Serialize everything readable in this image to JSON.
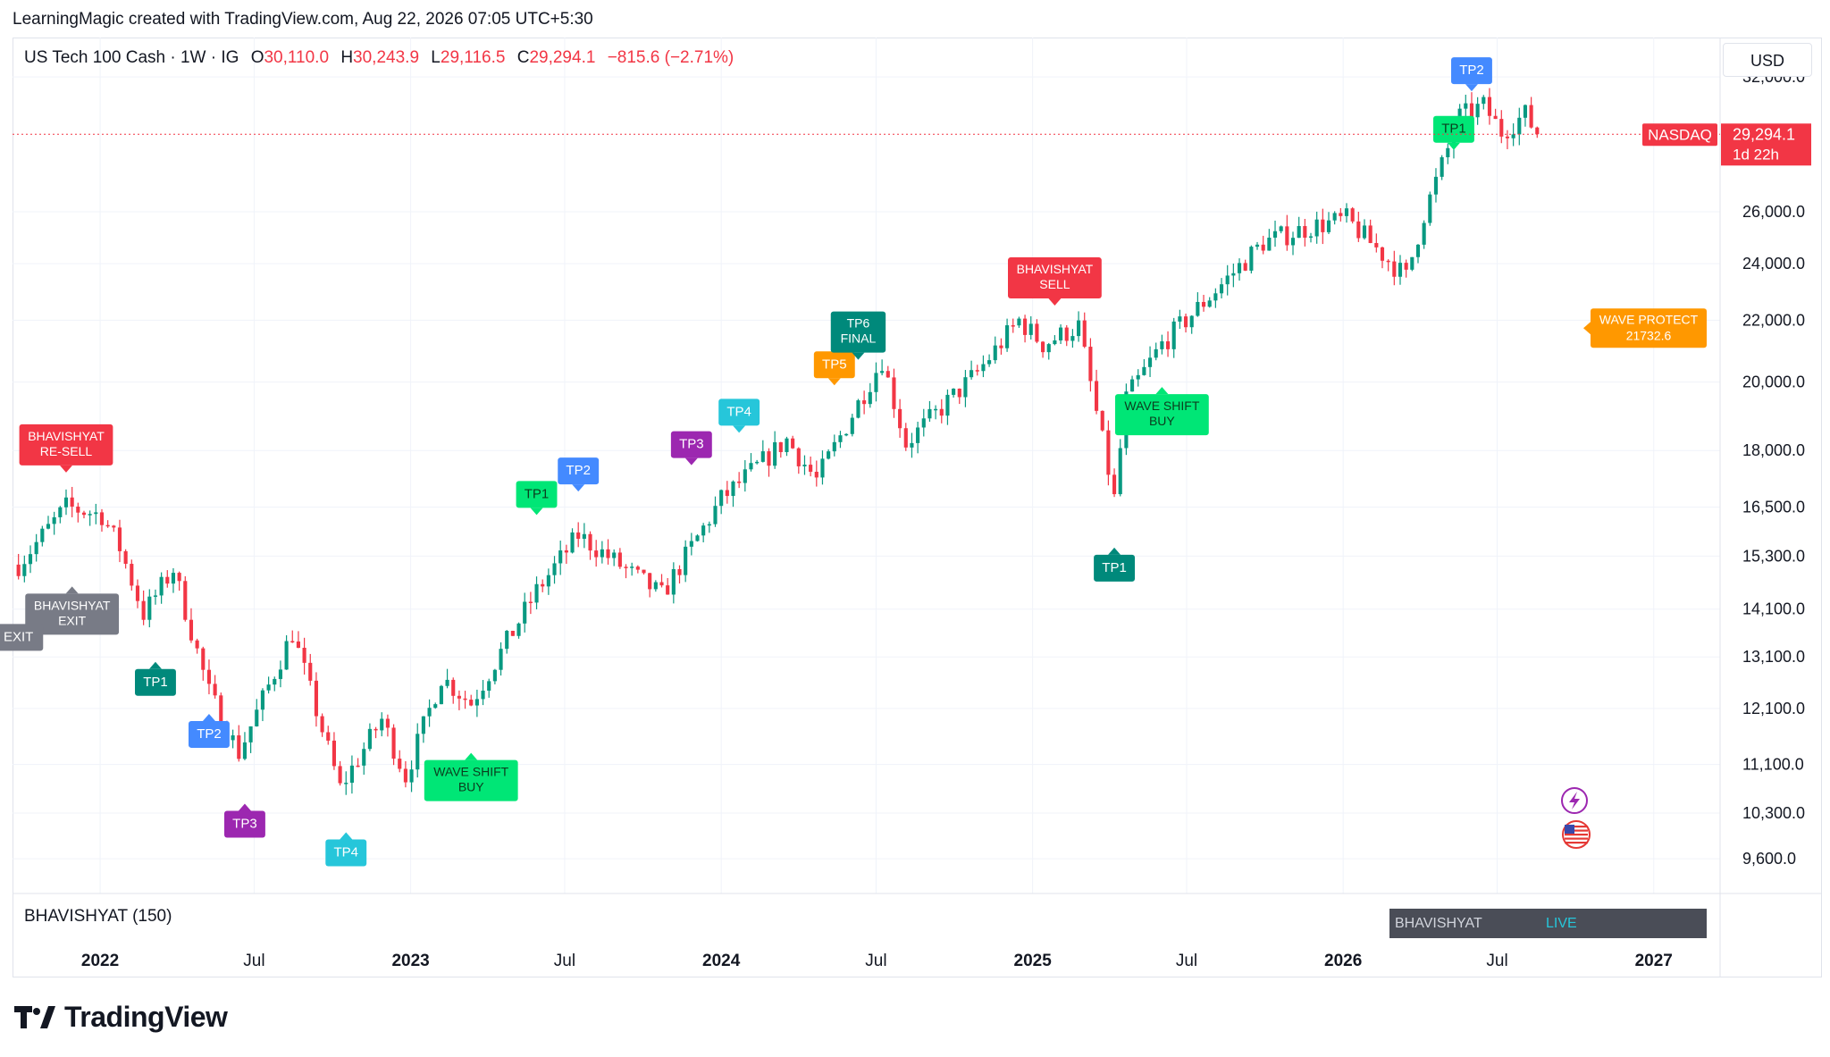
{
  "header": {
    "credit": "LearningMagic created with TradingView.com, Aug 22, 2026 07:05 UTC+5:30"
  },
  "legend": {
    "symbol": "US Tech 100 Cash · 1W · IG",
    "open_key": "O",
    "open": "30,110.0",
    "high_key": "H",
    "high": "30,243.9",
    "low_key": "L",
    "low": "29,116.5",
    "close_key": "C",
    "close": "29,294.1",
    "change": "−815.6 (−2.71%)"
  },
  "currency": "USD",
  "indicator": {
    "label": "BHAVISHYAT (150)",
    "table_name": "BHAVISHYAT",
    "table_status": "LIVE"
  },
  "price_badge": {
    "exchange": "NASDAQ",
    "last": "29,294.1",
    "countdown": "1d 22h"
  },
  "footer": {
    "brand": "TradingView",
    "logo_icon": "tradingview-logo-icon"
  },
  "icons": {
    "flash": "lightning-icon",
    "flag": "us-flag-icon"
  },
  "colors": {
    "up": "#089981",
    "down": "#f23645",
    "teal": "#00897b",
    "green": "#00e676",
    "blue": "#448aff",
    "purple": "#9c27b0",
    "cyan": "#26c6da",
    "orange": "#ff9800",
    "gray": "#787b86",
    "red_label": "#f23645"
  },
  "chart_data": {
    "type": "candlestick",
    "y_scale": "log",
    "ylim": [
      9100,
      34000
    ],
    "y_ticks": [
      9600,
      10300,
      11100,
      12100,
      13100,
      14100,
      15300,
      16500,
      18000,
      20000,
      22000,
      24000,
      26000,
      32000
    ],
    "y_tick_labels": [
      "9,600.0",
      "10,300.0",
      "11,100.0",
      "12,100.0",
      "13,100.0",
      "14,100.0",
      "15,300.0",
      "16,500.0",
      "18,000.0",
      "20,000.0",
      "22,000.0",
      "24,000.0",
      "26,000.0",
      "32,000.0"
    ],
    "x_ticks": [
      "2022",
      "Jul",
      "2023",
      "Jul",
      "2024",
      "Jul",
      "2025",
      "Jul",
      "2026",
      "Jul",
      "2027"
    ],
    "x_tick_dates": [
      "2022-01-01",
      "2022-07-01",
      "2023-01-01",
      "2023-07-01",
      "2024-01-01",
      "2024-07-01",
      "2025-01-01",
      "2025-07-01",
      "2026-01-01",
      "2026-07-01",
      "2027-01-01"
    ],
    "x_range": [
      "2021-09-20",
      "2027-03-20"
    ],
    "last_price_line": 29294.1,
    "close_anchors": [
      [
        "2021-09-27",
        15100
      ],
      [
        "2021-11-22",
        16500
      ],
      [
        "2022-01-03",
        16300
      ],
      [
        "2022-01-24",
        15500
      ],
      [
        "2022-02-21",
        14000
      ],
      [
        "2022-03-28",
        15000
      ],
      [
        "2022-05-09",
        12400
      ],
      [
        "2022-06-13",
        11300
      ],
      [
        "2022-08-15",
        13600
      ],
      [
        "2022-10-10",
        10700
      ],
      [
        "2022-11-28",
        11900
      ],
      [
        "2022-12-26",
        10900
      ],
      [
        "2023-02-06",
        12700
      ],
      [
        "2023-03-13",
        12200
      ],
      [
        "2023-05-29",
        14500
      ],
      [
        "2023-07-17",
        15800
      ],
      [
        "2023-10-23",
        14400
      ],
      [
        "2024-01-01",
        16700
      ],
      [
        "2024-03-18",
        18300
      ],
      [
        "2024-04-22",
        17200
      ],
      [
        "2024-07-08",
        20700
      ],
      [
        "2024-08-05",
        18200
      ],
      [
        "2024-10-28",
        20300
      ],
      [
        "2024-12-16",
        22000
      ],
      [
        "2025-01-13",
        21200
      ],
      [
        "2025-02-24",
        21800
      ],
      [
        "2025-04-07",
        16700
      ],
      [
        "2025-04-21",
        19500
      ],
      [
        "2025-06-02",
        21200
      ],
      [
        "2025-09-29",
        24800
      ],
      [
        "2025-11-24",
        25400
      ],
      [
        "2026-01-05",
        25700
      ],
      [
        "2026-03-16",
        23500
      ],
      [
        "2026-04-06",
        25900
      ],
      [
        "2026-05-18",
        30100
      ],
      [
        "2026-06-15",
        30600
      ],
      [
        "2026-07-06",
        29400
      ],
      [
        "2026-08-03",
        30200
      ],
      [
        "2026-08-17",
        29294.1
      ]
    ],
    "signals": [
      {
        "text": [
          "TP1"
        ],
        "date": "2022-03-07",
        "price": 13000,
        "color": "teal",
        "dir": "up"
      },
      {
        "text": [
          "TP2"
        ],
        "date": "2022-05-09",
        "price": 12000,
        "color": "blue",
        "dir": "up"
      },
      {
        "text": [
          "TP3"
        ],
        "date": "2022-06-20",
        "price": 10450,
        "color": "purple",
        "dir": "up"
      },
      {
        "text": [
          "TP4"
        ],
        "date": "2022-10-17",
        "price": 10000,
        "color": "cyan",
        "dir": "up"
      },
      {
        "text": [
          "WAVE SHIFT",
          "BUY"
        ],
        "date": "2023-03-13",
        "price": 11300,
        "color": "green",
        "dir": "up"
      },
      {
        "text": [
          "TP1"
        ],
        "date": "2023-05-29",
        "price": 16300,
        "color": "green",
        "dir": "down"
      },
      {
        "text": [
          "TP2"
        ],
        "date": "2023-07-17",
        "price": 16900,
        "color": "blue",
        "dir": "down"
      },
      {
        "text": [
          "TP3"
        ],
        "date": "2023-11-27",
        "price": 17600,
        "color": "purple",
        "dir": "down"
      },
      {
        "text": [
          "TP4"
        ],
        "date": "2024-01-22",
        "price": 18500,
        "color": "cyan",
        "dir": "down"
      },
      {
        "text": [
          "TP5"
        ],
        "date": "2024-05-13",
        "price": 19900,
        "color": "orange",
        "dir": "down"
      },
      {
        "text": [
          "TP6",
          "FINAL"
        ],
        "date": "2024-06-10",
        "price": 20700,
        "color": "teal",
        "dir": "down"
      },
      {
        "text": [
          "BHAVISHYAT",
          "SELL"
        ],
        "date": "2025-01-27",
        "price": 22500,
        "color": "red_label",
        "dir": "down"
      },
      {
        "text": [
          "TP1"
        ],
        "date": "2025-04-07",
        "price": 15500,
        "color": "teal",
        "dir": "up"
      },
      {
        "text": [
          "WAVE SHIFT",
          "BUY"
        ],
        "date": "2025-06-02",
        "price": 19850,
        "color": "green",
        "dir": "up"
      },
      {
        "text": [
          "TP1"
        ],
        "date": "2026-05-11",
        "price": 28600,
        "color": "green",
        "dir": "down"
      },
      {
        "text": [
          "TP2"
        ],
        "date": "2026-06-01",
        "price": 31300,
        "color": "blue",
        "dir": "down"
      },
      {
        "text": [
          "BHAVISHYAT",
          "RE-SELL"
        ],
        "date": "2021-11-22",
        "price": 17400,
        "color": "red_label",
        "dir": "down"
      },
      {
        "text": [
          "BHAVISHYAT",
          "EXIT"
        ],
        "date": "2021-11-29",
        "price": 14600,
        "color": "gray",
        "dir": "up"
      },
      {
        "text": [
          "EXIT"
        ],
        "date": "2021-09-27",
        "price": 13500,
        "color": "gray",
        "dir": "none"
      }
    ],
    "wave_protect": {
      "text": [
        "WAVE PROTECT",
        "21732.6"
      ],
      "value": 21732.6,
      "color": "orange"
    }
  }
}
